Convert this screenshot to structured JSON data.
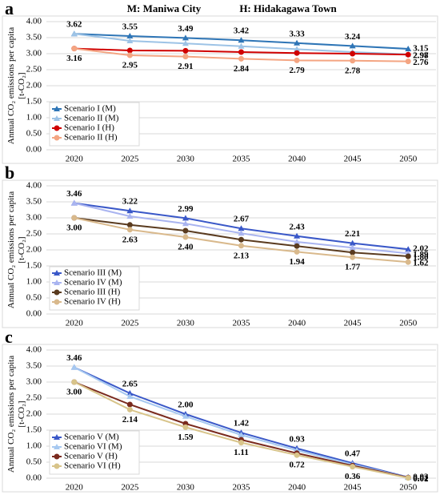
{
  "header": {
    "left": "M: Maniwa City",
    "right": "H: Hidakagawa Town"
  },
  "chart_data": [
    {
      "type": "line",
      "panel": "a",
      "ylabel": [
        "Annual CO₂ emissions per capita",
        "[t-CO₂]"
      ],
      "categories": [
        "2020",
        "2025",
        "2030",
        "2035",
        "2040",
        "2045",
        "2050"
      ],
      "ylim": [
        0,
        4
      ],
      "yticks": [
        {
          "value": 0,
          "label": "0.00"
        },
        {
          "value": 0.5,
          "label": "0.50"
        },
        {
          "value": 1,
          "label": "1.00"
        },
        {
          "value": 1.5,
          "label": "1.50"
        },
        {
          "value": 2,
          "label": "2.00"
        },
        {
          "value": 2.5,
          "label": "2.50"
        },
        {
          "value": 3,
          "label": "3.00"
        },
        {
          "value": 3.5,
          "label": "3.50"
        },
        {
          "value": 4,
          "label": "4.00"
        }
      ],
      "grid": true,
      "series": [
        {
          "name": "Scenario I (M)",
          "color": "#2e75b6",
          "marker": "triangle",
          "values": [
            3.62,
            3.55,
            3.49,
            3.42,
            3.33,
            3.24,
            3.15
          ]
        },
        {
          "name": "Scenario II (M)",
          "color": "#9dc3e6",
          "marker": "triangle",
          "values": [
            3.62,
            3.4,
            3.32,
            3.23,
            3.14,
            3.05,
            2.98
          ]
        },
        {
          "name": "Scenario I (H)",
          "color": "#d00000",
          "marker": "circle",
          "values": [
            3.16,
            3.1,
            3.09,
            3.05,
            3.02,
            3.0,
            2.97
          ]
        },
        {
          "name": "Scenario II (H)",
          "color": "#f4a582",
          "marker": "circle",
          "values": [
            3.16,
            2.95,
            2.91,
            2.84,
            2.79,
            2.78,
            2.76
          ]
        }
      ]
    },
    {
      "type": "line",
      "panel": "b",
      "ylabel": [
        "Annual CO₂ emissions per capita",
        "[t-CO₂]"
      ],
      "categories": [
        "2020",
        "2025",
        "2030",
        "2035",
        "2040",
        "2045",
        "2050"
      ],
      "ylim": [
        0,
        4
      ],
      "yticks": [
        {
          "value": 0,
          "label": "0.00"
        },
        {
          "value": 0.5,
          "label": "0.50"
        },
        {
          "value": 1,
          "label": "1.00"
        },
        {
          "value": 1.5,
          "label": "1.50"
        },
        {
          "value": 2,
          "label": "2.00"
        },
        {
          "value": 2.5,
          "label": "2.50"
        },
        {
          "value": 3,
          "label": "3.00"
        },
        {
          "value": 3.5,
          "label": "3.50"
        },
        {
          "value": 4,
          "label": "4.00"
        }
      ],
      "grid": true,
      "series": [
        {
          "name": "Scenario III (M)",
          "color": "#3a58c8",
          "marker": "triangle",
          "values": [
            3.46,
            3.22,
            2.99,
            2.67,
            2.43,
            2.21,
            2.02
          ]
        },
        {
          "name": "Scenario IV (M)",
          "color": "#a9b4f0",
          "marker": "triangle",
          "values": [
            3.46,
            3.05,
            2.82,
            2.52,
            2.25,
            2.07,
            1.89
          ]
        },
        {
          "name": "Scenario III (H)",
          "color": "#5a3b1f",
          "marker": "circle",
          "values": [
            3.0,
            2.78,
            2.6,
            2.32,
            2.12,
            1.92,
            1.8
          ],
          "value_labels": [
            null,
            null,
            null,
            null,
            null,
            null,
            "1.80"
          ]
        },
        {
          "name": "Scenario IV (H)",
          "color": "#d9b98c",
          "marker": "circle",
          "values": [
            3.0,
            2.63,
            2.4,
            2.13,
            1.94,
            1.77,
            1.62
          ],
          "value_labels": [
            "3.00",
            "2.63",
            "2.40",
            "2.13",
            "1.94",
            "1.77",
            "1.62"
          ]
        }
      ]
    },
    {
      "type": "line",
      "panel": "c",
      "ylabel": [
        "Annual CO₂ emissions per capita",
        "[t-CO₂]"
      ],
      "categories": [
        "2020",
        "2025",
        "2030",
        "2035",
        "2040",
        "2045",
        "2050"
      ],
      "ylim": [
        0,
        4
      ],
      "yticks": [
        {
          "value": 0,
          "label": "0.00"
        },
        {
          "value": 0.5,
          "label": "0.50"
        },
        {
          "value": 1,
          "label": "1.00"
        },
        {
          "value": 1.5,
          "label": "1.50"
        },
        {
          "value": 2,
          "label": "2.00"
        },
        {
          "value": 2.5,
          "label": "2.50"
        },
        {
          "value": 3,
          "label": "3.00"
        },
        {
          "value": 3.5,
          "label": "3.50"
        },
        {
          "value": 4,
          "label": "4.00"
        }
      ],
      "grid": true,
      "series": [
        {
          "name": "Scenario V (M)",
          "color": "#3a58c8",
          "marker": "triangle",
          "values": [
            3.46,
            2.65,
            2.0,
            1.42,
            0.93,
            0.47,
            0.03
          ],
          "value_labels": [
            "3.46",
            "2.65",
            "2.00",
            "1.42",
            "0.93",
            "0.47",
            "0.03"
          ]
        },
        {
          "name": "Scenario VI (M)",
          "color": "#a6c8f0",
          "marker": "triangle",
          "values": [
            3.46,
            2.55,
            1.93,
            1.35,
            0.87,
            0.43,
            0.02
          ]
        },
        {
          "name": "Scenario V (H)",
          "color": "#7a2a1e",
          "marker": "circle",
          "values": [
            3.0,
            2.3,
            1.7,
            1.2,
            0.78,
            0.39,
            0.02
          ],
          "value_labels": [
            null,
            null,
            null,
            null,
            null,
            null,
            "0.02"
          ]
        },
        {
          "name": "Scenario VI (H)",
          "color": "#d8c48a",
          "marker": "circle",
          "values": [
            3.0,
            2.14,
            1.59,
            1.11,
            0.72,
            0.36,
            0.01
          ],
          "value_labels": [
            "3.00",
            "2.14",
            "1.59",
            "1.11",
            "0.72",
            "0.36",
            "0.01"
          ]
        }
      ]
    }
  ]
}
